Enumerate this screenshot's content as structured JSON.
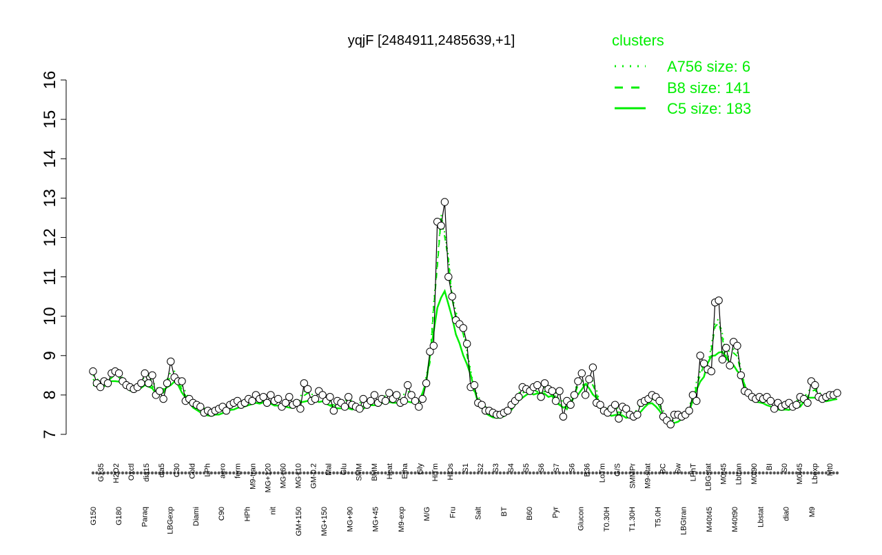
{
  "chart_data": {
    "type": "line",
    "title": "yqjF [2484911,2485639,+1]",
    "xlabel": "",
    "ylabel": "",
    "ylim": [
      7,
      16
    ],
    "yticks": [
      7,
      8,
      9,
      10,
      11,
      12,
      13,
      14,
      15,
      16
    ],
    "legend": {
      "title": "clusters",
      "placement": "top-right",
      "entries": [
        {
          "label": "A756 size: 6",
          "style": "dotted"
        },
        {
          "label": "B8 size: 141",
          "style": "dashed"
        },
        {
          "label": "C5 size: 183",
          "style": "solid"
        }
      ]
    },
    "colors": {
      "cluster": "#00ee00",
      "points": "#ffffff",
      "axis": "#000000"
    },
    "tick_labels_row1": [
      "G135",
      "H2O2",
      "Oxctl",
      "dia15",
      "dia5",
      "C30",
      "Cold",
      "LPh",
      "aero",
      "ferm",
      "M9-tran",
      "MG+120",
      "MG+60",
      "MG+10",
      "GM-0.2",
      "Mal",
      "Glu",
      "SMM",
      "BMM",
      "Heat",
      "Etha",
      "Gly",
      "HiTm",
      "HiOs",
      "S1",
      "S2",
      "S3",
      "S4",
      "S5",
      "S6",
      "S7",
      "S6",
      "B36",
      "LoTm",
      "G/S",
      "SMMPr",
      "M9-stat",
      "BC",
      "Sw",
      "LPhT",
      "LBGstat",
      "M0t45",
      "Lbtran",
      "M0t90",
      "BI",
      "S0",
      "M0t45",
      "Lbexp",
      "Mt0"
    ],
    "tick_labels_row2": [
      "G150",
      "G180",
      "Paraq",
      "LBGexp",
      "Diami",
      "C90",
      "HPh",
      "nit",
      "GM+150",
      "MG+150",
      "MG+90",
      "MG+45",
      "M9-exp",
      "M/G",
      "Fru",
      "Salt",
      "BT",
      "B60",
      "Pyr",
      "Glucon",
      "T0.30H",
      "T1.30H",
      "T5.0H",
      "LBGtran",
      "M40t45",
      "M40t90",
      "Lbstat",
      "dia0",
      "M9"
    ],
    "series": [
      {
        "values": [
          8.6,
          8.3,
          8.2,
          8.35,
          8.3,
          8.55,
          8.6,
          8.55,
          8.35,
          8.25,
          8.2,
          8.15,
          8.2,
          8.3,
          8.55,
          8.3,
          8.5,
          8.0,
          8.1,
          7.9,
          8.3,
          8.85,
          8.45,
          8.35,
          8.35,
          7.85,
          7.9,
          7.8,
          7.75,
          7.7,
          7.55,
          7.6,
          7.55,
          7.6,
          7.65,
          7.7,
          7.6,
          7.75,
          7.8,
          7.85,
          7.75,
          7.8,
          7.9,
          7.85,
          8.0,
          7.9,
          7.95,
          7.8,
          8.0,
          7.85,
          7.9,
          7.7,
          7.8,
          7.95,
          7.75,
          7.8,
          7.65,
          8.3,
          8.15,
          7.85,
          7.9,
          8.1,
          8.0,
          7.85,
          7.95,
          7.6,
          7.85,
          7.8,
          7.7,
          7.95,
          7.75,
          7.7,
          7.65,
          7.9,
          7.75,
          7.85,
          8.0,
          7.8,
          7.9,
          7.85,
          8.05,
          7.9,
          8.0,
          7.8,
          7.85,
          8.25,
          8.0,
          7.85,
          7.7,
          7.9,
          8.3,
          9.1,
          9.25,
          12.4,
          12.3,
          12.9,
          11.0,
          10.5,
          9.9,
          9.8,
          9.7,
          9.3,
          8.2,
          8.25,
          7.8,
          7.75,
          7.6,
          7.6,
          7.55,
          7.5,
          7.5,
          7.55,
          7.6,
          7.75,
          7.85,
          7.95,
          8.2,
          8.15,
          8.1,
          8.2,
          8.25,
          7.95,
          8.3,
          8.15,
          8.1,
          7.85,
          8.1,
          7.45,
          7.85,
          7.75,
          8.0,
          8.35,
          8.55,
          8.0,
          8.4,
          8.7,
          7.8,
          7.75,
          7.6,
          7.55,
          7.65,
          7.75,
          7.4,
          7.7,
          7.65,
          7.5,
          7.45,
          7.5,
          7.8,
          7.85,
          7.9,
          8.0,
          7.95,
          7.85,
          7.45,
          7.35,
          7.25,
          7.5,
          7.5,
          7.45,
          7.5,
          7.6,
          8.0,
          7.85,
          9.0,
          8.8,
          8.65,
          8.6,
          10.35,
          10.4,
          8.9,
          9.2,
          8.75,
          9.35,
          9.25,
          8.5,
          8.1,
          8.05,
          7.95,
          7.9,
          7.95,
          7.9,
          7.95,
          7.85,
          7.65,
          7.8,
          7.7,
          7.75,
          7.8,
          7.7,
          7.75,
          7.95,
          7.9,
          7.8,
          8.35,
          8.25,
          7.95,
          7.9,
          7.95,
          8.0,
          8.0,
          8.05
        ]
      }
    ]
  }
}
